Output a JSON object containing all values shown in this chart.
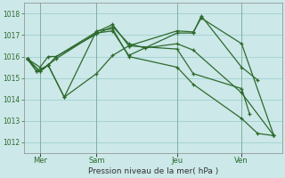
{
  "xlabel": "Pression niveau de la mer( hPa )",
  "ylim": [
    1011.5,
    1018.5
  ],
  "yticks": [
    1012,
    1013,
    1014,
    1015,
    1016,
    1017,
    1018
  ],
  "xlim": [
    0,
    16
  ],
  "background_color": "#cce8e8",
  "grid_color": "#99cccc",
  "line_color": "#2d6a2d",
  "day_labels": [
    "Mer",
    "Sam",
    "Jeu",
    "Ven"
  ],
  "day_positions": [
    1.0,
    4.5,
    9.5,
    13.5
  ],
  "vline_positions": [
    1.0,
    4.5,
    9.5,
    13.5
  ],
  "lines": [
    {
      "x": [
        0.2,
        1.0,
        1.5,
        2.0,
        4.5,
        5.5,
        6.5,
        9.5,
        10.5,
        11.0,
        13.5,
        14.5
      ],
      "y": [
        1015.9,
        1015.3,
        1015.6,
        1015.9,
        1017.1,
        1017.2,
        1016.05,
        1017.1,
        1017.1,
        1017.9,
        1015.5,
        1014.9
      ]
    },
    {
      "x": [
        0.2,
        1.0,
        1.5,
        2.0,
        4.5,
        5.5,
        6.5,
        9.5,
        10.5,
        11.0,
        13.5,
        15.5
      ],
      "y": [
        1015.9,
        1015.3,
        1015.6,
        1016.0,
        1017.15,
        1017.5,
        1016.5,
        1017.2,
        1017.15,
        1017.8,
        1016.6,
        1012.3
      ]
    },
    {
      "x": [
        0.2,
        1.0,
        1.5,
        2.0,
        4.5,
        5.5,
        6.5,
        7.5,
        9.5,
        10.5,
        13.5,
        15.5
      ],
      "y": [
        1015.9,
        1015.5,
        1016.0,
        1016.0,
        1017.05,
        1017.4,
        1016.6,
        1016.4,
        1016.6,
        1016.3,
        1014.3,
        1012.3
      ]
    },
    {
      "x": [
        0.2,
        0.8,
        1.5,
        2.5,
        4.5,
        5.5,
        6.5,
        9.5,
        10.5,
        13.5,
        14.0
      ],
      "y": [
        1015.9,
        1015.3,
        1015.6,
        1014.1,
        1015.2,
        1016.05,
        1016.5,
        1016.35,
        1015.2,
        1014.5,
        1013.3
      ]
    },
    {
      "x": [
        0.2,
        0.8,
        1.5,
        2.5,
        4.5,
        5.5,
        6.5,
        9.5,
        10.5,
        13.5,
        14.5,
        15.5
      ],
      "y": [
        1015.9,
        1015.3,
        1015.6,
        1014.1,
        1017.2,
        1017.3,
        1016.0,
        1015.5,
        1014.7,
        1013.1,
        1012.4,
        1012.3
      ]
    }
  ]
}
